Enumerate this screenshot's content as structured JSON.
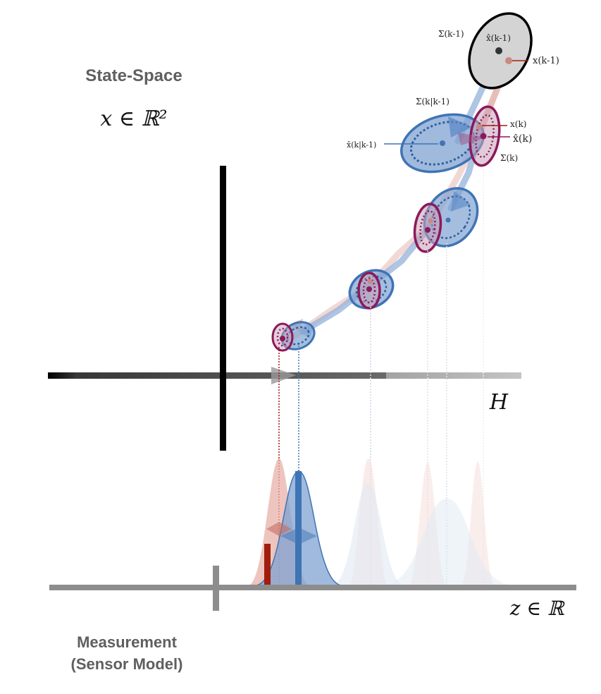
{
  "diagram": {
    "state_space_title": "State-Space",
    "state_space_formula": "x ∈ ℝ²",
    "projection_label": "H",
    "measurement_axis_label": "z ∈ ℝ",
    "measurement_title_line1": "Measurement",
    "measurement_title_line2": "(Sensor Model)",
    "ellipse_labels": {
      "prior_cov": "Σ(k-1)",
      "prior_est": "x̂(k-1)",
      "prior_true": "x(k-1)",
      "pred_cov": "Σ(k|k-1)",
      "pred_est": "x̂(k|k-1)",
      "true_state": "x(k)",
      "post_est": "x̂(k)",
      "post_cov": "Σ(k)"
    },
    "colors": {
      "prior": "#d3d3d3",
      "predicted": "#3f74b5",
      "posterior": "#8b1a5a",
      "true_path": "#e6b3ad",
      "measurement": "#a11e0c",
      "axis": "#8d8d8d"
    }
  }
}
